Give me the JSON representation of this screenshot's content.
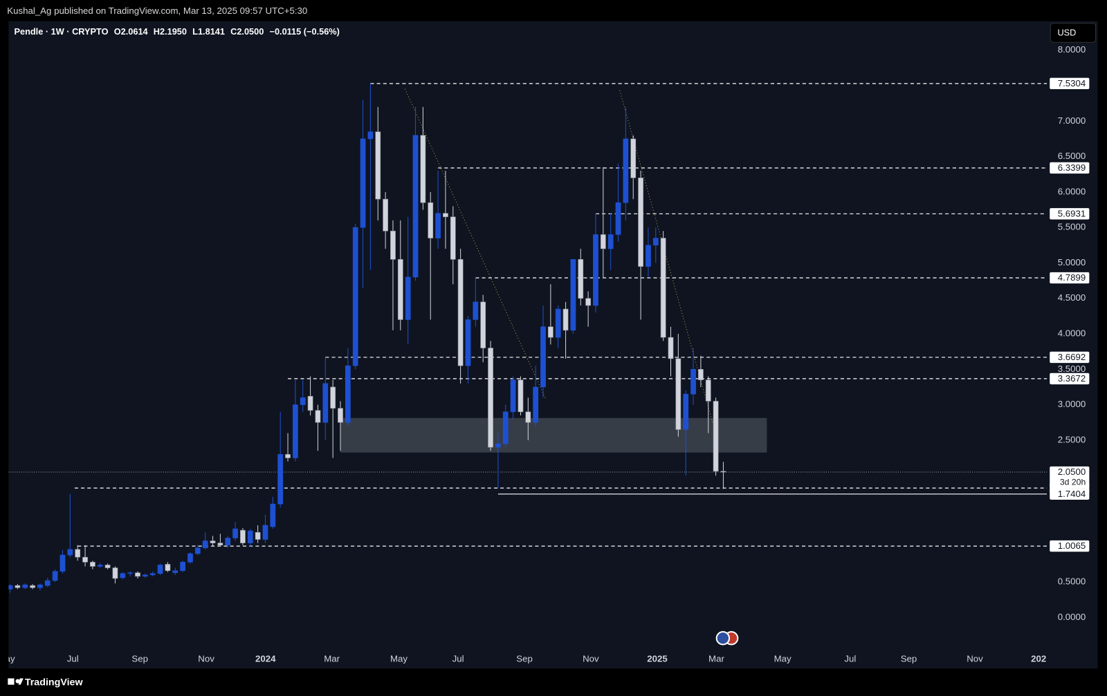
{
  "header": "Kushal_Ag published on TradingView.com, Mar 13, 2025 09:57 UTC+5:30",
  "footer": "TradingView",
  "currency": "USD",
  "chart_data": {
    "type": "candlestick",
    "legend": {
      "symbol": "Pendle · 1W · CRYPTO",
      "open": "O2.0614",
      "high": "H2.1950",
      "low": "L1.8141",
      "close": "C2.0500",
      "change": "−0.0115 (−0.56%)"
    },
    "up_color": "#1e50d2",
    "down_color": "#d1d4dc",
    "open": [
      0.4,
      0.45,
      0.42,
      0.45,
      0.42,
      0.45,
      0.52,
      0.65,
      0.88,
      0.96,
      0.85,
      0.78,
      0.72,
      0.74,
      0.7,
      0.56,
      0.62,
      0.63,
      0.58,
      0.6,
      0.62,
      0.75,
      0.63,
      0.66,
      0.78,
      0.9,
      0.98,
      1.08,
      1.05,
      1.02,
      1.12,
      1.23,
      1.05,
      1.2,
      1.1,
      1.28,
      1.6,
      2.3,
      2.25,
      3.0,
      3.12,
      2.92,
      2.75,
      3.25,
      2.95,
      2.75,
      3.55,
      5.5,
      6.75,
      6.85,
      5.9,
      5.45,
      5.05,
      4.2,
      4.8,
      6.8,
      5.85,
      5.35,
      5.7,
      5.65,
      5.05,
      3.55,
      4.2,
      4.45,
      3.8,
      2.4,
      2.45,
      2.9,
      3.35,
      2.9,
      2.75,
      3.25,
      4.1,
      3.95,
      4.35,
      4.05,
      5.05,
      4.5,
      4.4,
      5.4,
      5.2,
      5.4,
      5.85,
      6.75,
      6.2,
      4.95,
      5.25,
      5.35,
      3.95,
      3.65,
      2.65,
      3.15,
      3.5,
      3.35,
      3.05,
      2.0614
    ],
    "high": [
      0.47,
      0.47,
      0.48,
      0.47,
      0.48,
      0.56,
      0.68,
      0.95,
      1.74,
      1.02,
      1.02,
      0.8,
      0.77,
      0.76,
      0.72,
      0.64,
      0.65,
      0.65,
      0.62,
      0.65,
      0.76,
      0.78,
      0.7,
      0.8,
      0.92,
      1.02,
      1.2,
      1.15,
      1.18,
      1.15,
      1.35,
      1.26,
      1.25,
      1.3,
      1.45,
      1.7,
      2.9,
      2.6,
      3.35,
      3.35,
      3.4,
      3.0,
      3.66,
      3.35,
      3.05,
      3.8,
      5.55,
      7.3,
      7.53,
      7.2,
      6.0,
      5.6,
      5.6,
      5.65,
      7.2,
      7.2,
      6.0,
      6.3,
      6.3,
      5.8,
      5.2,
      4.25,
      4.8,
      4.55,
      3.9,
      2.6,
      3.0,
      3.4,
      3.4,
      3.1,
      3.55,
      4.4,
      4.7,
      4.4,
      4.45,
      5.05,
      5.2,
      4.6,
      5.7,
      6.35,
      5.7,
      6.4,
      7.2,
      6.8,
      6.3,
      5.5,
      5.5,
      5.45,
      4.1,
      4.0,
      3.2,
      3.8,
      3.69,
      3.4,
      3.1,
      2.195
    ],
    "low": [
      0.35,
      0.4,
      0.4,
      0.4,
      0.38,
      0.43,
      0.5,
      0.62,
      0.85,
      0.8,
      0.72,
      0.68,
      0.7,
      0.68,
      0.48,
      0.54,
      0.58,
      0.55,
      0.56,
      0.58,
      0.6,
      0.64,
      0.6,
      0.64,
      0.76,
      0.88,
      0.96,
      1.0,
      1.0,
      0.98,
      1.08,
      1.02,
      1.0,
      1.05,
      1.05,
      1.25,
      1.55,
      2.2,
      2.2,
      2.9,
      2.85,
      2.35,
      2.5,
      2.25,
      2.35,
      2.7,
      3.5,
      4.65,
      4.9,
      5.6,
      5.2,
      4.05,
      4.05,
      3.85,
      4.75,
      5.75,
      4.2,
      5.2,
      5.2,
      4.7,
      3.3,
      3.3,
      4.1,
      3.6,
      2.35,
      1.82,
      2.4,
      2.8,
      2.85,
      2.5,
      2.7,
      3.1,
      3.85,
      3.8,
      3.65,
      4.0,
      4.4,
      4.1,
      4.3,
      4.8,
      4.9,
      5.3,
      5.6,
      5.9,
      4.2,
      4.8,
      5.0,
      3.9,
      3.4,
      2.55,
      2.0,
      3.0,
      3.25,
      2.6,
      2.0,
      1.8141
    ],
    "close": [
      0.45,
      0.42,
      0.46,
      0.42,
      0.46,
      0.52,
      0.65,
      0.88,
      0.96,
      0.85,
      0.78,
      0.72,
      0.74,
      0.7,
      0.55,
      0.62,
      0.63,
      0.58,
      0.6,
      0.62,
      0.74,
      0.66,
      0.66,
      0.78,
      0.9,
      0.98,
      1.08,
      1.05,
      1.02,
      1.12,
      1.25,
      1.05,
      1.22,
      1.1,
      1.3,
      1.6,
      2.3,
      2.25,
      3.0,
      3.1,
      2.92,
      2.75,
      3.3,
      2.95,
      2.75,
      3.55,
      5.5,
      6.75,
      6.85,
      5.9,
      5.45,
      5.05,
      4.2,
      4.8,
      6.8,
      5.85,
      5.35,
      5.7,
      5.65,
      5.05,
      3.55,
      4.2,
      4.45,
      3.8,
      2.4,
      2.45,
      2.9,
      3.35,
      2.9,
      2.75,
      3.25,
      4.1,
      3.95,
      4.35,
      4.05,
      5.05,
      4.5,
      4.4,
      5.4,
      5.2,
      5.4,
      5.85,
      6.75,
      6.2,
      4.95,
      5.25,
      5.35,
      3.95,
      3.65,
      2.65,
      3.15,
      3.5,
      3.35,
      3.05,
      2.0614,
      2.05
    ],
    "xlim": [
      -0.2,
      138.1
    ],
    "xticks": [
      {
        "value": -0.5,
        "label": "May"
      },
      {
        "value": 8.36,
        "label": "Jul"
      },
      {
        "value": 17.29,
        "label": "Sep"
      },
      {
        "value": 26.13,
        "label": "Nov"
      },
      {
        "value": 34.02,
        "label": "2024"
      },
      {
        "value": 42.86,
        "label": "Mar"
      },
      {
        "value": 51.79,
        "label": "May"
      },
      {
        "value": 59.68,
        "label": "Jul"
      },
      {
        "value": 68.52,
        "label": "Sep"
      },
      {
        "value": 77.35,
        "label": "Nov"
      },
      {
        "value": 86.2,
        "label": "2025"
      },
      {
        "value": 94.08,
        "label": "Mar"
      },
      {
        "value": 102.9,
        "label": "May"
      },
      {
        "value": 111.9,
        "label": "Jul"
      },
      {
        "value": 119.7,
        "label": "Sep"
      },
      {
        "value": 128.5,
        "label": "Nov"
      },
      {
        "value": 137.0,
        "label": "202"
      }
    ],
    "ylim": [
      -0.72,
      8.41
    ],
    "yticks": [
      {
        "value": 0,
        "label": "0.0000"
      },
      {
        "value": 0.5,
        "label": "0.5000"
      },
      {
        "value": 2.5,
        "label": "2.5000"
      },
      {
        "value": 3,
        "label": "3.0000"
      },
      {
        "value": 3.5,
        "label": "3.5000"
      },
      {
        "value": 4,
        "label": "4.0000"
      },
      {
        "value": 4.5,
        "label": "4.5000"
      },
      {
        "value": 5,
        "label": "5.0000"
      },
      {
        "value": 5.5,
        "label": "5.5000"
      },
      {
        "value": 6,
        "label": "6.0000"
      },
      {
        "value": 6.5,
        "label": "6.5000"
      },
      {
        "value": 7,
        "label": "7.0000"
      },
      {
        "value": 8,
        "label": "8.0000"
      }
    ],
    "levels": [
      {
        "value": 7.5304,
        "from": 48
      },
      {
        "value": 6.3399,
        "from": 57
      },
      {
        "value": 5.6931,
        "from": 78
      },
      {
        "value": 4.7899,
        "from": 62
      },
      {
        "value": 3.6692,
        "from": 42
      },
      {
        "value": 3.3672,
        "from": 37
      },
      {
        "value": 1.8249,
        "from": 8.6
      },
      {
        "value": 1.0065,
        "from": 9
      }
    ],
    "support": {
      "value": 1.7404,
      "from": 65
    },
    "current": {
      "value": 2.05,
      "label": "2.0500",
      "countdown": "3d 20h"
    },
    "zone": {
      "from": 44,
      "to": 100.8,
      "low": 2.326,
      "high": 2.813
    },
    "trendlines": [
      {
        "x": [
          52.6,
          71.3
        ],
        "y": [
          7.455,
          3.09
        ]
      },
      {
        "x": [
          81.2,
          93.6
        ],
        "y": [
          7.435,
          2.74
        ]
      }
    ]
  }
}
